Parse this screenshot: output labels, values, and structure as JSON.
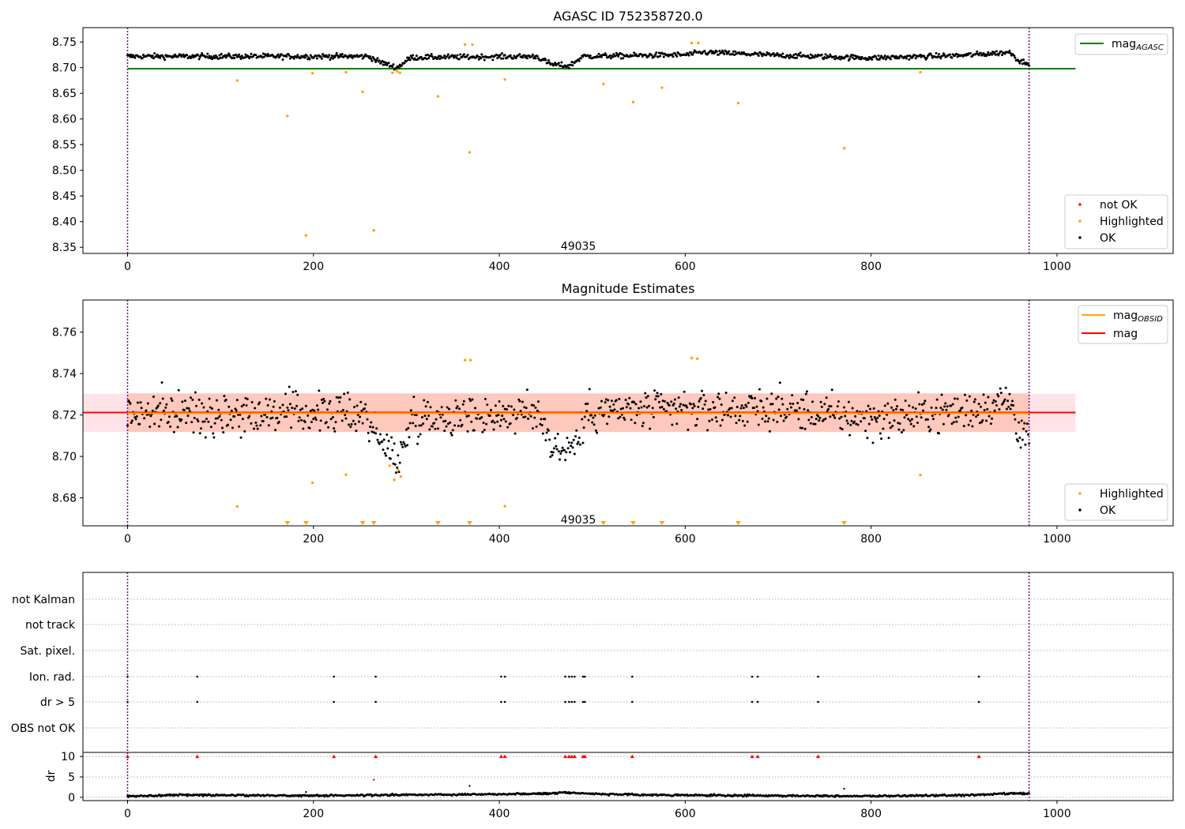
{
  "chart_data": [
    {
      "type": "scatter",
      "title": "AGASC ID 752358720.0",
      "xlim": [
        -48,
        1125
      ],
      "ylim": [
        8.338,
        8.778
      ],
      "xticks": [
        "0",
        "200",
        "400",
        "600",
        "800",
        "1000"
      ],
      "xtick_values": [
        0,
        200,
        400,
        600,
        800,
        1000
      ],
      "yticks": [
        "8.35",
        "8.40",
        "8.45",
        "8.50",
        "8.55",
        "8.60",
        "8.65",
        "8.70",
        "8.75"
      ],
      "ytick_values": [
        8.35,
        8.4,
        8.45,
        8.5,
        8.55,
        8.6,
        8.65,
        8.7,
        8.75
      ],
      "vlines": [
        0,
        970
      ],
      "obsid_label": "49035",
      "obsid_label_pos": [
        485,
        8.353
      ],
      "hline": {
        "name": "mag_AGASC",
        "y": 8.698,
        "x": [
          0,
          1020
        ],
        "color": "#008000"
      },
      "legend_lines": [
        {
          "label": "mag",
          "sub": "AGASC",
          "color": "#008000"
        }
      ],
      "legend_points": [
        {
          "label": "not OK",
          "color": "#ff0000"
        },
        {
          "label": "Highlighted",
          "color": "#ffa500"
        },
        {
          "label": "OK",
          "color": "#000000"
        }
      ],
      "ok_profile": [
        [
          0,
          8.722
        ],
        [
          260,
          8.722
        ],
        [
          270,
          8.712
        ],
        [
          290,
          8.7
        ],
        [
          305,
          8.72
        ],
        [
          440,
          8.722
        ],
        [
          455,
          8.707
        ],
        [
          475,
          8.703
        ],
        [
          490,
          8.722
        ],
        [
          600,
          8.725
        ],
        [
          620,
          8.73
        ],
        [
          700,
          8.724
        ],
        [
          800,
          8.719
        ],
        [
          900,
          8.724
        ],
        [
          950,
          8.73
        ],
        [
          960,
          8.712
        ],
        [
          970,
          8.71
        ]
      ],
      "ok_scatter": 0.006,
      "highlighted": [
        [
          118,
          8.675
        ],
        [
          172,
          8.606
        ],
        [
          192,
          8.373
        ],
        [
          199,
          8.689
        ],
        [
          235,
          8.691
        ],
        [
          253,
          8.653
        ],
        [
          265,
          8.383
        ],
        [
          285,
          8.69
        ],
        [
          290,
          8.693
        ],
        [
          293,
          8.69
        ],
        [
          334,
          8.644
        ],
        [
          363,
          8.745
        ],
        [
          368,
          8.535
        ],
        [
          371,
          8.745
        ],
        [
          406,
          8.677
        ],
        [
          512,
          8.668
        ],
        [
          544,
          8.633
        ],
        [
          575,
          8.661
        ],
        [
          607,
          8.748
        ],
        [
          614,
          8.748
        ],
        [
          657,
          8.631
        ],
        [
          771,
          8.543
        ],
        [
          853,
          8.691
        ]
      ],
      "not_ok": []
    },
    {
      "type": "scatter",
      "title": "Magnitude Estimates",
      "xlim": [
        -48,
        1125
      ],
      "ylim": [
        8.6665,
        8.7755
      ],
      "xticks": [
        "0",
        "200",
        "400",
        "600",
        "800",
        "1000"
      ],
      "xtick_values": [
        0,
        200,
        400,
        600,
        800,
        1000
      ],
      "yticks": [
        "8.68",
        "8.70",
        "8.72",
        "8.74",
        "8.76"
      ],
      "ytick_values": [
        8.68,
        8.7,
        8.72,
        8.74,
        8.76
      ],
      "vlines": [
        0,
        970
      ],
      "obsid_label": "49035",
      "obsid_label_pos": [
        485,
        8.6695
      ],
      "mag_line": {
        "name": "mag",
        "y": 8.7212,
        "x": [
          -48,
          1020
        ],
        "color": "#ff0000"
      },
      "mag_band": {
        "y": [
          8.7118,
          8.7302
        ],
        "x": [
          -48,
          1020
        ],
        "color": "#ffc0cb"
      },
      "obsid_line": {
        "name": "mag_OBSID",
        "y": 8.7208,
        "x": [
          0,
          970
        ],
        "color": "#ffa500"
      },
      "obsid_band": {
        "y": [
          8.7118,
          8.7305
        ],
        "x": [
          0,
          970
        ],
        "color": "#ffa07a"
      },
      "legend_lines": [
        {
          "label": "mag",
          "sub": "OBSID",
          "color": "#ffa500"
        },
        {
          "label": "mag",
          "sub": "",
          "color": "#ff0000"
        }
      ],
      "legend_points": [
        {
          "label": "Highlighted",
          "color": "#ffa500"
        },
        {
          "label": "OK",
          "color": "#000000"
        }
      ],
      "ok_profile": [
        [
          0,
          8.721
        ],
        [
          255,
          8.721
        ],
        [
          265,
          8.713
        ],
        [
          280,
          8.702
        ],
        [
          295,
          8.7
        ],
        [
          305,
          8.719
        ],
        [
          445,
          8.721
        ],
        [
          455,
          8.706
        ],
        [
          470,
          8.703
        ],
        [
          485,
          8.708
        ],
        [
          495,
          8.722
        ],
        [
          700,
          8.723
        ],
        [
          800,
          8.718
        ],
        [
          900,
          8.722
        ],
        [
          950,
          8.727
        ],
        [
          960,
          8.712
        ],
        [
          970,
          8.708
        ]
      ],
      "ok_scatter": 0.0075,
      "highlighted": [
        [
          118,
          8.6758
        ],
        [
          199,
          8.6873
        ],
        [
          235,
          8.6912
        ],
        [
          282,
          8.6955
        ],
        [
          287,
          8.6887
        ],
        [
          291,
          8.6935
        ],
        [
          294,
          8.6903
        ],
        [
          363,
          8.7465
        ],
        [
          369,
          8.7465
        ],
        [
          406,
          8.676
        ],
        [
          607,
          8.7475
        ],
        [
          613,
          8.7472
        ],
        [
          853,
          8.691
        ]
      ],
      "below_range": [
        172,
        192,
        253,
        265,
        334,
        368,
        512,
        544,
        575,
        657,
        771
      ]
    },
    {
      "type": "scatter",
      "title": "",
      "xlim": [
        -48,
        1125
      ],
      "vlines": [
        0,
        970
      ],
      "flag_rows": [
        "not Kalman",
        "not track",
        "Sat. pixel.",
        "Ion. rad.",
        "dr > 5",
        "OBS not OK"
      ],
      "flag_events": {
        "Ion. rad.": [
          0,
          75,
          222,
          267,
          402,
          406,
          471,
          475,
          478,
          481,
          490,
          492,
          543,
          672,
          678,
          743,
          916
        ],
        "dr > 5": [
          0,
          75,
          222,
          267,
          402,
          406,
          471,
          475,
          478,
          481,
          490,
          492,
          543,
          672,
          678,
          743,
          916
        ]
      },
      "ylabel": "dr",
      "dr_yticks": [
        "0",
        "5",
        "10"
      ],
      "dr_ytick_values": [
        0,
        5,
        10
      ],
      "dr_ylim": [
        -0.8,
        11
      ],
      "dr_clipped": [
        0,
        75,
        222,
        267,
        402,
        406,
        471,
        475,
        478,
        481,
        490,
        492,
        543,
        672,
        678,
        743,
        916
      ],
      "dr_outliers": [
        [
          192,
          1.3
        ],
        [
          265,
          4.3
        ],
        [
          368,
          2.8
        ],
        [
          771,
          2.1
        ]
      ],
      "dr_profile": [
        [
          0,
          0.2
        ],
        [
          50,
          0.6
        ],
        [
          200,
          0.4
        ],
        [
          300,
          0.6
        ],
        [
          400,
          0.8
        ],
        [
          450,
          0.9
        ],
        [
          470,
          1.2
        ],
        [
          520,
          0.7
        ],
        [
          600,
          0.5
        ],
        [
          700,
          0.4
        ],
        [
          800,
          0.3
        ],
        [
          900,
          0.5
        ],
        [
          950,
          0.9
        ],
        [
          970,
          0.9
        ]
      ],
      "xticks": [
        "0",
        "200",
        "400",
        "600",
        "800",
        "1000"
      ],
      "xtick_values": [
        0,
        200,
        400,
        600,
        800,
        1000
      ]
    }
  ]
}
